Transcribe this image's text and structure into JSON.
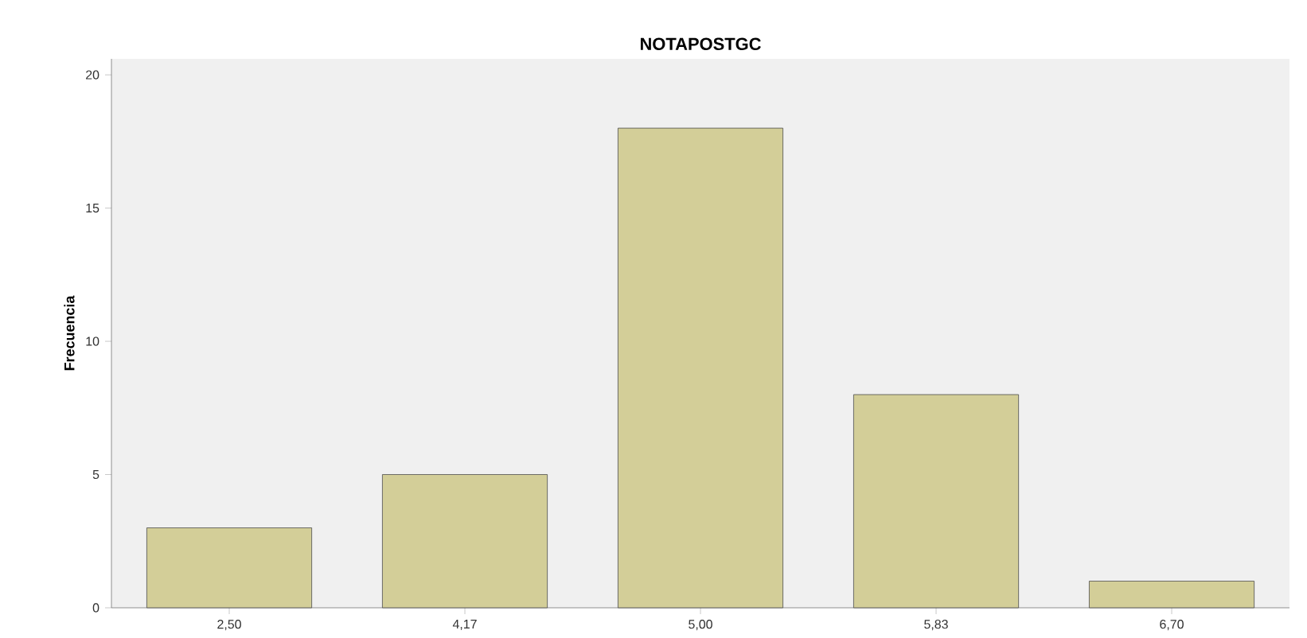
{
  "chart_data": {
    "type": "bar",
    "title": "NOTAPOSTGC",
    "ylabel": "Frecuencia",
    "categories": [
      "2,50",
      "4,17",
      "5,00",
      "5,83",
      "6,70"
    ],
    "values": [
      3,
      5,
      18,
      8,
      1
    ],
    "color": "#d3ce98",
    "ylim": [
      0,
      20.6
    ],
    "yticks": [
      0,
      5,
      10,
      15,
      20
    ]
  }
}
